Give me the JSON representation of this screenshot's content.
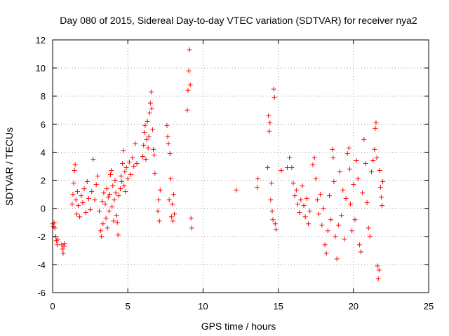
{
  "chart_data": {
    "type": "scatter",
    "title": "Day 080 of 2015, Sidereal Day-to-day VTEC variation (SDTVAR) for receiver nya2",
    "xlabel": "GPS time / hours",
    "ylabel": "SDTVAR / TECUs",
    "xlim": [
      0,
      25
    ],
    "ylim": [
      -6,
      12
    ],
    "xticks": [
      0,
      5,
      10,
      15,
      20,
      25
    ],
    "yticks": [
      -6,
      -4,
      -2,
      0,
      2,
      4,
      6,
      8,
      10,
      12
    ],
    "grid": true,
    "marker": "+",
    "color": "#ff0000",
    "series": [
      {
        "name": "SDTVAR",
        "points": [
          [
            0.0,
            -1.1
          ],
          [
            0.05,
            -1.3
          ],
          [
            0.1,
            -1.0
          ],
          [
            0.15,
            -1.4
          ],
          [
            0.2,
            -2.0
          ],
          [
            0.25,
            -2.3
          ],
          [
            0.3,
            -2.6
          ],
          [
            0.35,
            -2.2
          ],
          [
            0.6,
            -2.6
          ],
          [
            0.65,
            -2.9
          ],
          [
            0.7,
            -3.2
          ],
          [
            0.75,
            -2.7
          ],
          [
            0.8,
            -2.5
          ],
          [
            1.3,
            0.3
          ],
          [
            1.35,
            1.0
          ],
          [
            1.4,
            1.8
          ],
          [
            1.45,
            2.7
          ],
          [
            1.5,
            3.1
          ],
          [
            1.55,
            0.6
          ],
          [
            1.6,
            -0.4
          ],
          [
            1.65,
            1.2
          ],
          [
            1.7,
            0.2
          ],
          [
            1.8,
            -0.6
          ],
          [
            1.9,
            0.9
          ],
          [
            2.0,
            0.4
          ],
          [
            2.1,
            1.4
          ],
          [
            2.2,
            -0.3
          ],
          [
            2.3,
            1.9
          ],
          [
            2.4,
            0.7
          ],
          [
            2.5,
            -0.1
          ],
          [
            2.6,
            1.2
          ],
          [
            2.7,
            3.5
          ],
          [
            2.8,
            0.6
          ],
          [
            2.9,
            1.7
          ],
          [
            3.0,
            2.3
          ],
          [
            3.1,
            -0.2
          ],
          [
            3.2,
            -1.6
          ],
          [
            3.25,
            -2.0
          ],
          [
            3.3,
            0.5
          ],
          [
            3.35,
            -1.1
          ],
          [
            3.4,
            1.1
          ],
          [
            3.5,
            0.3
          ],
          [
            3.55,
            -0.7
          ],
          [
            3.6,
            1.4
          ],
          [
            3.65,
            -1.4
          ],
          [
            3.7,
            0.8
          ],
          [
            3.75,
            -0.2
          ],
          [
            3.8,
            1.0
          ],
          [
            3.85,
            2.4
          ],
          [
            3.9,
            2.7
          ],
          [
            3.95,
            0.1
          ],
          [
            4.0,
            1.6
          ],
          [
            4.05,
            -0.9
          ],
          [
            4.1,
            0.6
          ],
          [
            4.15,
            2.0
          ],
          [
            4.2,
            1.1
          ],
          [
            4.25,
            -0.5
          ],
          [
            4.3,
            -1.0
          ],
          [
            4.35,
            -1.9
          ],
          [
            4.4,
            0.9
          ],
          [
            4.5,
            1.4
          ],
          [
            4.55,
            2.3
          ],
          [
            4.6,
            1.9
          ],
          [
            4.65,
            3.2
          ],
          [
            4.7,
            4.1
          ],
          [
            4.75,
            1.6
          ],
          [
            4.8,
            2.6
          ],
          [
            4.85,
            1.2
          ],
          [
            4.9,
            2.9
          ],
          [
            5.0,
            2.1
          ],
          [
            5.1,
            3.3
          ],
          [
            5.2,
            2.4
          ],
          [
            5.3,
            3.6
          ],
          [
            5.4,
            3.0
          ],
          [
            5.5,
            4.6
          ],
          [
            5.6,
            3.2
          ],
          [
            6.0,
            3.7
          ],
          [
            6.05,
            4.5
          ],
          [
            6.1,
            5.4
          ],
          [
            6.15,
            5.9
          ],
          [
            6.2,
            3.5
          ],
          [
            6.25,
            4.9
          ],
          [
            6.3,
            6.2
          ],
          [
            6.35,
            4.3
          ],
          [
            6.4,
            5.1
          ],
          [
            6.45,
            6.8
          ],
          [
            6.5,
            7.5
          ],
          [
            6.55,
            8.3
          ],
          [
            6.6,
            7.1
          ],
          [
            6.65,
            5.6
          ],
          [
            6.7,
            4.2
          ],
          [
            6.75,
            3.8
          ],
          [
            6.8,
            2.5
          ],
          [
            7.0,
            -0.2
          ],
          [
            7.05,
            0.6
          ],
          [
            7.1,
            -0.9
          ],
          [
            7.15,
            1.3
          ],
          [
            7.6,
            5.9
          ],
          [
            7.65,
            5.1
          ],
          [
            7.7,
            4.6
          ],
          [
            7.75,
            0.6
          ],
          [
            7.8,
            3.9
          ],
          [
            7.85,
            2.1
          ],
          [
            7.9,
            -0.6
          ],
          [
            7.95,
            0.3
          ],
          [
            8.0,
            -0.9
          ],
          [
            8.05,
            1.0
          ],
          [
            8.1,
            -0.4
          ],
          [
            8.95,
            7.0
          ],
          [
            9.0,
            8.4
          ],
          [
            9.05,
            9.8
          ],
          [
            9.1,
            11.3
          ],
          [
            9.15,
            8.8
          ],
          [
            9.2,
            -0.7
          ],
          [
            9.25,
            -1.4
          ],
          [
            12.2,
            1.3
          ],
          [
            13.6,
            1.5
          ],
          [
            13.65,
            2.1
          ],
          [
            14.3,
            2.9
          ],
          [
            14.35,
            6.6
          ],
          [
            14.4,
            5.5
          ],
          [
            14.45,
            6.1
          ],
          [
            14.5,
            0.6
          ],
          [
            14.55,
            1.8
          ],
          [
            14.6,
            -0.2
          ],
          [
            14.65,
            -0.8
          ],
          [
            14.7,
            8.5
          ],
          [
            14.75,
            7.9
          ],
          [
            14.8,
            -1.1
          ],
          [
            14.85,
            -1.5
          ],
          [
            15.2,
            2.7
          ],
          [
            15.6,
            2.9
          ],
          [
            15.75,
            3.6
          ],
          [
            15.9,
            2.9
          ],
          [
            16.0,
            1.8
          ],
          [
            16.1,
            0.9
          ],
          [
            16.2,
            1.3
          ],
          [
            16.3,
            0.3
          ],
          [
            16.4,
            -0.3
          ],
          [
            16.5,
            0.6
          ],
          [
            16.6,
            1.6
          ],
          [
            16.7,
            0.2
          ],
          [
            16.8,
            -0.6
          ],
          [
            16.9,
            0.7
          ],
          [
            17.0,
            -1.1
          ],
          [
            17.1,
            -0.2
          ],
          [
            17.3,
            3.1
          ],
          [
            17.4,
            3.6
          ],
          [
            17.5,
            2.1
          ],
          [
            17.6,
            0.6
          ],
          [
            17.7,
            -0.4
          ],
          [
            17.8,
            1.0
          ],
          [
            17.9,
            -1.2
          ],
          [
            18.0,
            0.0
          ],
          [
            18.1,
            -2.6
          ],
          [
            18.2,
            -3.2
          ],
          [
            18.3,
            -1.6
          ],
          [
            18.4,
            0.9
          ],
          [
            18.5,
            -0.8
          ],
          [
            18.6,
            4.2
          ],
          [
            18.65,
            3.6
          ],
          [
            18.7,
            1.9
          ],
          [
            18.8,
            -2.0
          ],
          [
            18.9,
            -3.6
          ],
          [
            19.0,
            -1.2
          ],
          [
            19.1,
            2.6
          ],
          [
            19.2,
            -0.5
          ],
          [
            19.3,
            1.3
          ],
          [
            19.4,
            -2.2
          ],
          [
            19.5,
            0.7
          ],
          [
            19.6,
            3.9
          ],
          [
            19.7,
            4.3
          ],
          [
            19.75,
            2.8
          ],
          [
            19.8,
            0.3
          ],
          [
            19.9,
            -1.6
          ],
          [
            20.0,
            1.7
          ],
          [
            20.1,
            -0.8
          ],
          [
            20.2,
            3.4
          ],
          [
            20.3,
            2.1
          ],
          [
            20.4,
            -2.6
          ],
          [
            20.5,
            -3.1
          ],
          [
            20.6,
            1.1
          ],
          [
            20.7,
            4.9
          ],
          [
            20.8,
            3.2
          ],
          [
            20.9,
            0.4
          ],
          [
            21.0,
            -1.4
          ],
          [
            21.1,
            -2.0
          ],
          [
            21.2,
            2.6
          ],
          [
            21.3,
            3.4
          ],
          [
            21.4,
            4.2
          ],
          [
            21.45,
            5.7
          ],
          [
            21.5,
            6.1
          ],
          [
            21.55,
            3.6
          ],
          [
            21.6,
            -4.1
          ],
          [
            21.65,
            -5.0
          ],
          [
            21.7,
            -4.4
          ],
          [
            21.75,
            2.7
          ],
          [
            21.8,
            1.5
          ],
          [
            21.85,
            0.8
          ],
          [
            21.9,
            0.2
          ],
          [
            21.95,
            1.9
          ]
        ]
      }
    ]
  }
}
